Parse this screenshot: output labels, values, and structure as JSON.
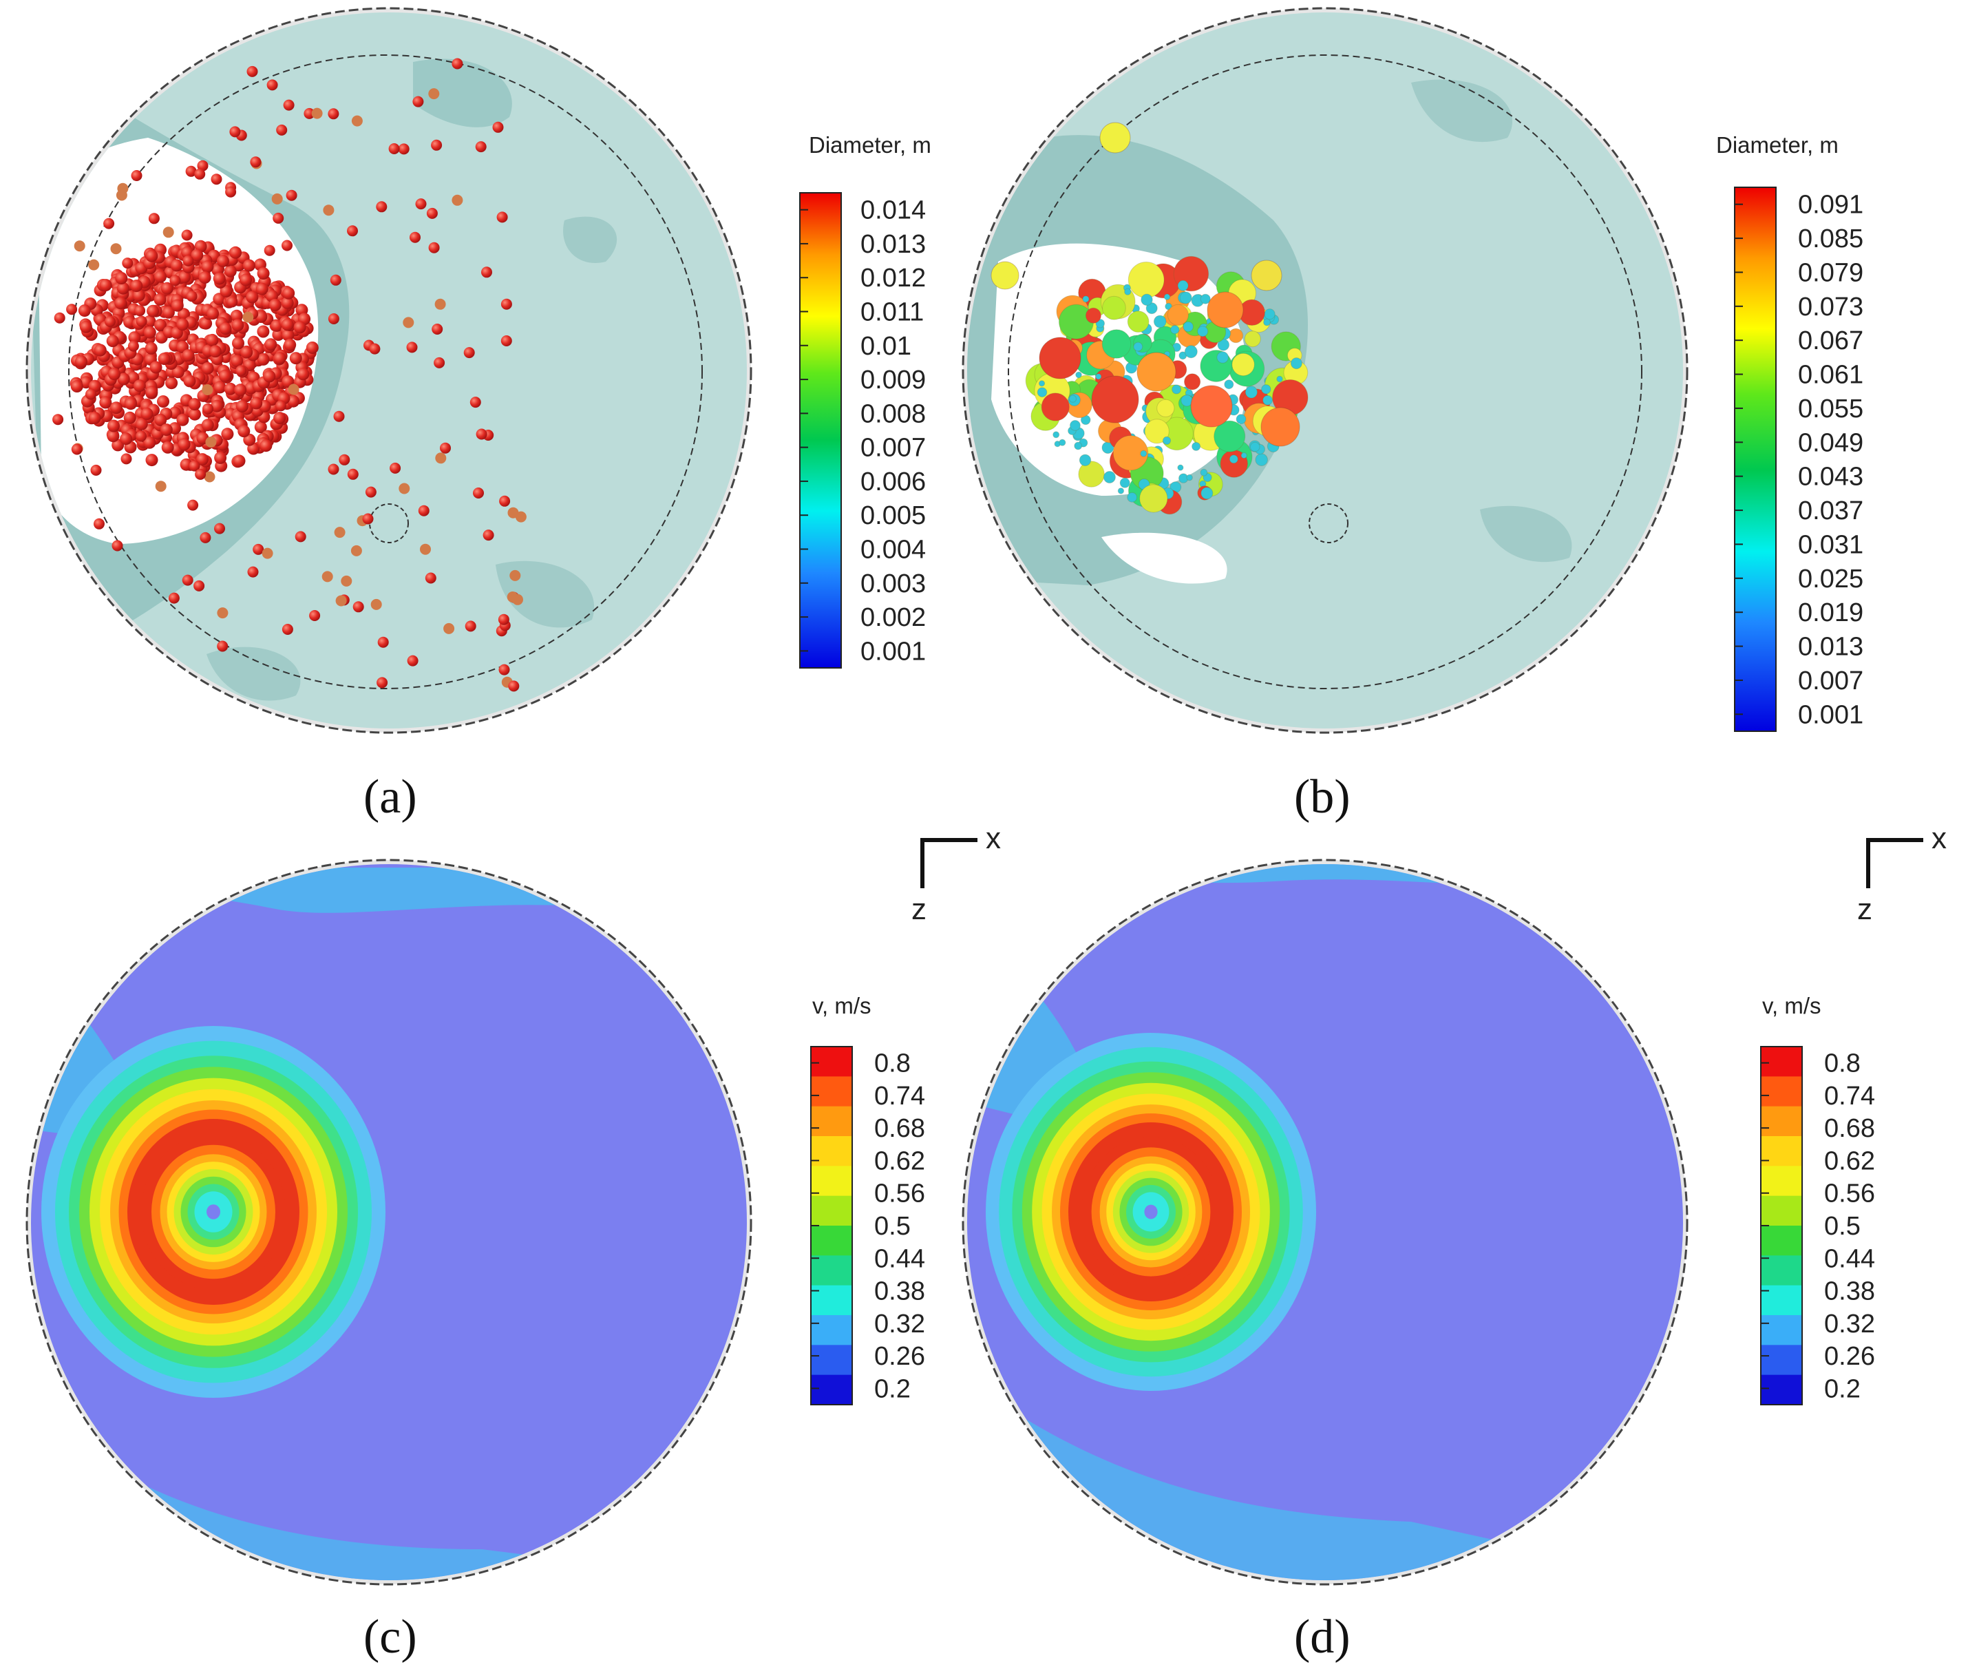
{
  "panels": [
    {
      "label": "(a)",
      "kind": "bubbles",
      "colorbar_title": "Diameter, m",
      "ticks": [
        "0.014",
        "0.013",
        "0.012",
        "0.011",
        "0.01",
        "0.009",
        "0.008",
        "0.007",
        "0.006",
        "0.005",
        "0.004",
        "0.003",
        "0.002",
        "0.001"
      ]
    },
    {
      "label": "(b)",
      "kind": "bubbles",
      "colorbar_title": "Diameter, m",
      "ticks": [
        "0.091",
        "0.085",
        "0.079",
        "0.073",
        "0.067",
        "0.061",
        "0.055",
        "0.049",
        "0.043",
        "0.037",
        "0.031",
        "0.025",
        "0.019",
        "0.013",
        "0.007",
        "0.001"
      ]
    },
    {
      "label": "(c)",
      "kind": "velocity",
      "colorbar_title": "v, m/s",
      "ticks": [
        "0.8",
        "0.74",
        "0.68",
        "0.62",
        "0.56",
        "0.5",
        "0.44",
        "0.38",
        "0.32",
        "0.26",
        "0.2"
      ]
    },
    {
      "label": "(d)",
      "kind": "velocity",
      "colorbar_title": "v, m/s",
      "ticks": [
        "0.8",
        "0.74",
        "0.68",
        "0.62",
        "0.56",
        "0.5",
        "0.44",
        "0.38",
        "0.32",
        "0.26",
        "0.2"
      ]
    }
  ],
  "axes_indicator": {
    "horizontal": "x",
    "vertical": "z"
  },
  "colors": {
    "liquid": "#bcdcd9",
    "liquid_dark": "#7fb4b1",
    "bubble_small": "#e03228",
    "field_low": "#7b7ff0",
    "velocity_rings": [
      "#35e8e0",
      "#22cc80",
      "#38d84a",
      "#8fe030",
      "#d8ee20",
      "#ffe21c",
      "#ffb014",
      "#ff7a10",
      "#e8361a"
    ]
  }
}
